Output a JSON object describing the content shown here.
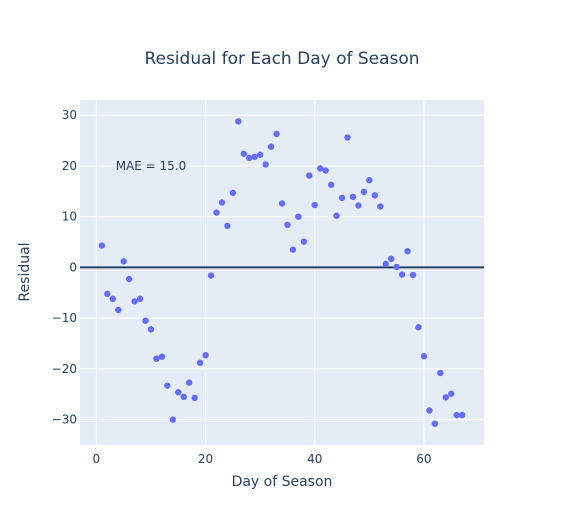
{
  "chart_data": {
    "type": "scatter",
    "title": "Residual for Each Day of Season",
    "xlabel": "Day of Season",
    "ylabel": "Residual",
    "xlim": [
      -3,
      71
    ],
    "ylim": [
      -35,
      33
    ],
    "xticks": [
      0,
      20,
      40,
      60
    ],
    "yticks": [
      -30,
      -20,
      -10,
      0,
      10,
      20,
      30
    ],
    "grid": true,
    "zero_line": 0,
    "marker_color": "#636efa",
    "line_color": "#2a3f5f",
    "plot_bg": "#e5ecf6",
    "annotation": {
      "text": "MAE = 15.0",
      "x": 10,
      "y": 20
    },
    "points": [
      {
        "x": 1,
        "y": 4.3
      },
      {
        "x": 2,
        "y": -5.2
      },
      {
        "x": 3,
        "y": -6.2
      },
      {
        "x": 4,
        "y": -8.4
      },
      {
        "x": 5,
        "y": 1.2
      },
      {
        "x": 6,
        "y": -2.3
      },
      {
        "x": 7,
        "y": -6.7
      },
      {
        "x": 8,
        "y": -6.2
      },
      {
        "x": 9,
        "y": -10.5
      },
      {
        "x": 10,
        "y": -12.2
      },
      {
        "x": 11,
        "y": -18.0
      },
      {
        "x": 12,
        "y": -17.6
      },
      {
        "x": 13,
        "y": -23.3
      },
      {
        "x": 14,
        "y": -30.0
      },
      {
        "x": 15,
        "y": -24.6
      },
      {
        "x": 16,
        "y": -25.5
      },
      {
        "x": 17,
        "y": -22.7
      },
      {
        "x": 18,
        "y": -25.7
      },
      {
        "x": 19,
        "y": -18.8
      },
      {
        "x": 20,
        "y": -17.3
      },
      {
        "x": 21,
        "y": -1.6
      },
      {
        "x": 22,
        "y": 10.8
      },
      {
        "x": 23,
        "y": 12.8
      },
      {
        "x": 24,
        "y": 8.2
      },
      {
        "x": 25,
        "y": 14.7
      },
      {
        "x": 26,
        "y": 28.8
      },
      {
        "x": 27,
        "y": 22.4
      },
      {
        "x": 28,
        "y": 21.6
      },
      {
        "x": 29,
        "y": 21.8
      },
      {
        "x": 30,
        "y": 22.2
      },
      {
        "x": 31,
        "y": 20.3
      },
      {
        "x": 32,
        "y": 23.8
      },
      {
        "x": 33,
        "y": 26.3
      },
      {
        "x": 34,
        "y": 12.6
      },
      {
        "x": 35,
        "y": 8.4
      },
      {
        "x": 36,
        "y": 3.5
      },
      {
        "x": 37,
        "y": 10.0
      },
      {
        "x": 38,
        "y": 5.1
      },
      {
        "x": 39,
        "y": 18.1
      },
      {
        "x": 40,
        "y": 12.3
      },
      {
        "x": 41,
        "y": 19.5
      },
      {
        "x": 42,
        "y": 19.1
      },
      {
        "x": 43,
        "y": 16.3
      },
      {
        "x": 44,
        "y": 10.2
      },
      {
        "x": 45,
        "y": 13.7
      },
      {
        "x": 46,
        "y": 25.6
      },
      {
        "x": 47,
        "y": 13.9
      },
      {
        "x": 48,
        "y": 12.2
      },
      {
        "x": 49,
        "y": 14.9
      },
      {
        "x": 50,
        "y": 17.2
      },
      {
        "x": 51,
        "y": 14.2
      },
      {
        "x": 52,
        "y": 12.0
      },
      {
        "x": 53,
        "y": 0.7
      },
      {
        "x": 54,
        "y": 1.7
      },
      {
        "x": 55,
        "y": 0.1
      },
      {
        "x": 56,
        "y": -1.4
      },
      {
        "x": 57,
        "y": 3.2
      },
      {
        "x": 58,
        "y": -1.5
      },
      {
        "x": 59,
        "y": -11.8
      },
      {
        "x": 60,
        "y": -17.5
      },
      {
        "x": 61,
        "y": -28.2
      },
      {
        "x": 62,
        "y": -30.8
      },
      {
        "x": 63,
        "y": -20.8
      },
      {
        "x": 64,
        "y": -25.6
      },
      {
        "x": 65,
        "y": -24.9
      },
      {
        "x": 66,
        "y": -29.1
      },
      {
        "x": 67,
        "y": -29.1
      }
    ]
  }
}
